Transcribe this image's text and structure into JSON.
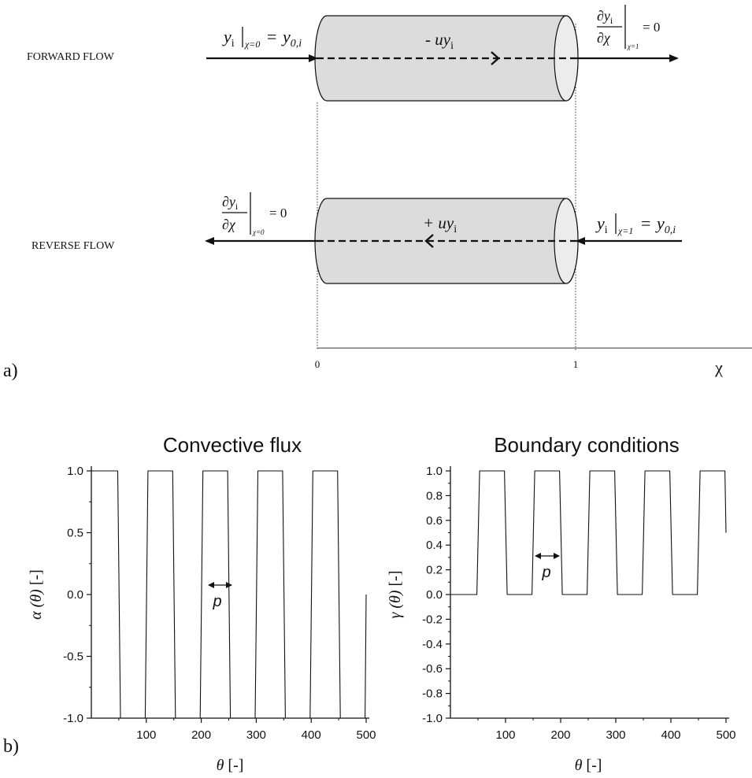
{
  "diagram": {
    "forward_label": "FORWARD FLOW",
    "reverse_label": "REVERSE FLOW",
    "panel_a_label": "a)",
    "panel_b_label": "b)",
    "forward_term": "- uy",
    "forward_term_sub": "i",
    "reverse_term": "+ uy",
    "reverse_term_sub": "i",
    "axis_tick_0": "0",
    "axis_tick_1": "1",
    "axis_name": "χ",
    "eq_forward_inlet": {
      "y": "y",
      "sub_i": "i",
      "cond": "χ=0",
      "eq": "=",
      "rhs": "y",
      "rhs_sub": "0,i"
    },
    "eq_forward_outlet": {
      "num": "∂y",
      "num_sub": "i",
      "den": "∂χ",
      "cond": "χ=1",
      "rhs": "= 0"
    },
    "eq_reverse_outlet": {
      "num": "∂y",
      "num_sub": "i",
      "den": "∂χ",
      "cond": "χ=0",
      "rhs": "= 0"
    },
    "eq_reverse_inlet": {
      "y": "y",
      "sub_i": "i",
      "cond": "χ=1",
      "eq": "=",
      "rhs": "y",
      "rhs_sub": "0,i"
    }
  },
  "chart_data": [
    {
      "type": "line",
      "title": "Convective flux",
      "xlabel_symbol": "θ",
      "xlabel_unit": " [-]",
      "ylabel_symbol": "α (θ)",
      "ylabel_unit": " [-]",
      "xlim": [
        0,
        500
      ],
      "ylim": [
        -1.0,
        1.0
      ],
      "xticks": [
        "100",
        "200",
        "300",
        "400",
        "500"
      ],
      "yticks": [
        "1.0",
        "0.5",
        "0.0",
        "-0.5",
        "-1.0"
      ],
      "ytick_values": [
        1.0,
        0.5,
        0.0,
        -0.5,
        -1.0
      ],
      "annotation": "p",
      "series": [
        {
          "x": [
            0,
            48,
            53,
            98,
            103,
            148,
            153,
            198,
            203,
            248,
            253,
            298,
            303,
            348,
            353,
            398,
            403,
            448,
            453,
            498,
            500
          ],
          "y": [
            1,
            1,
            -1,
            -1,
            1,
            1,
            -1,
            -1,
            1,
            1,
            -1,
            -1,
            1,
            1,
            -1,
            -1,
            1,
            1,
            -1,
            -1,
            0
          ]
        }
      ]
    },
    {
      "type": "line",
      "title": "Boundary conditions",
      "xlabel_symbol": "θ",
      "xlabel_unit": " [-]",
      "ylabel_symbol": "γ (θ)",
      "ylabel_unit": " [-]",
      "xlim": [
        0,
        500
      ],
      "ylim": [
        -1.0,
        1.0
      ],
      "xticks": [
        "100",
        "200",
        "300",
        "400",
        "500"
      ],
      "yticks": [
        "1.0",
        "0.8",
        "0.6",
        "0.4",
        "0.2",
        "0.0",
        "-0.2",
        "-0.4",
        "-0.6",
        "-0.8",
        "-1.0"
      ],
      "ytick_values": [
        1.0,
        0.8,
        0.6,
        0.4,
        0.2,
        0.0,
        -0.2,
        -0.4,
        -0.6,
        -0.8,
        -1.0
      ],
      "annotation": "p",
      "series": [
        {
          "x": [
            0,
            48,
            53,
            98,
            103,
            148,
            153,
            198,
            203,
            248,
            253,
            298,
            303,
            348,
            353,
            398,
            403,
            448,
            453,
            498,
            500
          ],
          "y": [
            0,
            0,
            1,
            1,
            0,
            0,
            1,
            1,
            0,
            0,
            1,
            1,
            0,
            0,
            1,
            1,
            0,
            0,
            1,
            1,
            0.5
          ]
        }
      ]
    }
  ]
}
